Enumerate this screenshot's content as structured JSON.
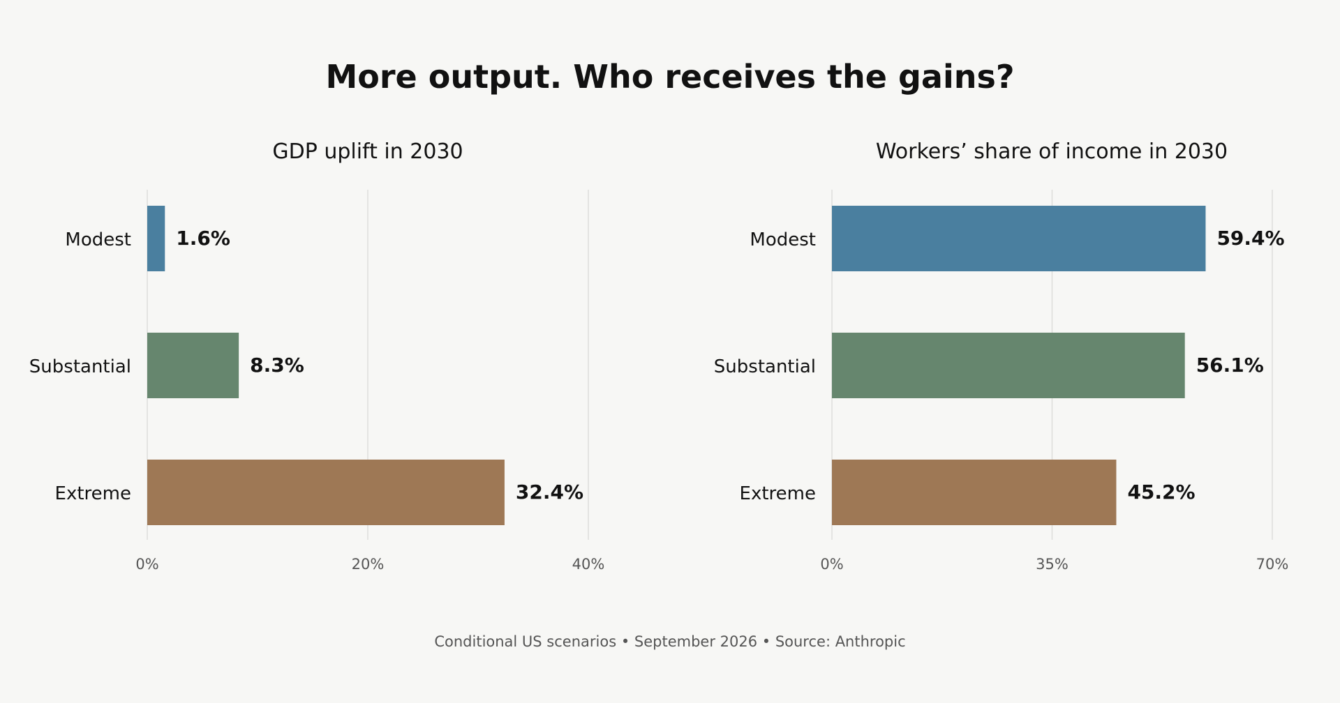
{
  "title": "More output. Who receives the gains?",
  "footnote": "Conditional US scenarios • September 2026 • Source: Anthropic",
  "chart_data": [
    {
      "type": "bar",
      "orientation": "horizontal",
      "title": "GDP uplift in 2030",
      "categories": [
        "Modest",
        "Substantial",
        "Extreme"
      ],
      "values": [
        1.6,
        8.3,
        32.4
      ],
      "value_labels": [
        "1.6%",
        "8.3%",
        "32.4%"
      ],
      "colors": [
        "#4a7f9f",
        "#66866e",
        "#9e7855"
      ],
      "xlim": [
        0,
        40
      ],
      "ticks": [
        0,
        20,
        40
      ],
      "tick_labels": [
        "0%",
        "20%",
        "40%"
      ],
      "grid": true
    },
    {
      "type": "bar",
      "orientation": "horizontal",
      "title": "Workers’ share of income in 2030",
      "categories": [
        "Modest",
        "Substantial",
        "Extreme"
      ],
      "values": [
        59.4,
        56.1,
        45.2
      ],
      "value_labels": [
        "59.4%",
        "56.1%",
        "45.2%"
      ],
      "colors": [
        "#4a7f9f",
        "#66866e",
        "#9e7855"
      ],
      "xlim": [
        0,
        70
      ],
      "ticks": [
        0,
        35,
        70
      ],
      "tick_labels": [
        "0%",
        "35%",
        "70%"
      ],
      "grid": true
    }
  ]
}
